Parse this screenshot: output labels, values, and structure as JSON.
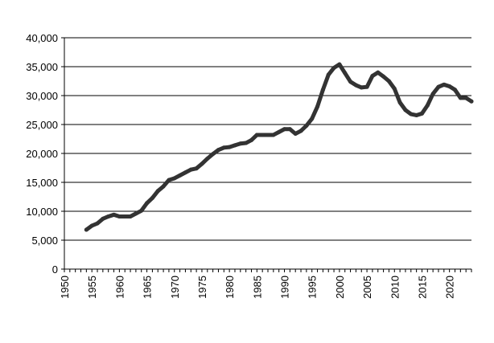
{
  "chart_data": {
    "type": "line",
    "title": "",
    "xlabel": "",
    "ylabel": "",
    "xlim": [
      1950,
      2024
    ],
    "ylim": [
      0,
      40000
    ],
    "grid": true,
    "legend": "none",
    "x_tick_labels": [
      "1950",
      "1955",
      "1960",
      "1965",
      "1970",
      "1975",
      "1980",
      "1985",
      "1990",
      "1995",
      "2000",
      "2005",
      "2010",
      "2015",
      "2020"
    ],
    "y_tick_labels": [
      "0",
      "5,000",
      "10,000",
      "15,000",
      "20,000",
      "25,000",
      "30,000",
      "35,000",
      "40,000"
    ],
    "series": [
      {
        "color": "#333333",
        "points": [
          [
            1954,
            6800
          ],
          [
            1955,
            7500
          ],
          [
            1956,
            7900
          ],
          [
            1957,
            8700
          ],
          [
            1958,
            9100
          ],
          [
            1959,
            9400
          ],
          [
            1960,
            9100
          ],
          [
            1961,
            9100
          ],
          [
            1962,
            9100
          ],
          [
            1963,
            9600
          ],
          [
            1964,
            10100
          ],
          [
            1965,
            11400
          ],
          [
            1966,
            12300
          ],
          [
            1967,
            13500
          ],
          [
            1968,
            14300
          ],
          [
            1969,
            15400
          ],
          [
            1970,
            15700
          ],
          [
            1971,
            16200
          ],
          [
            1972,
            16700
          ],
          [
            1973,
            17200
          ],
          [
            1974,
            17400
          ],
          [
            1975,
            18200
          ],
          [
            1976,
            19100
          ],
          [
            1977,
            19900
          ],
          [
            1978,
            20600
          ],
          [
            1979,
            21000
          ],
          [
            1980,
            21100
          ],
          [
            1981,
            21400
          ],
          [
            1982,
            21700
          ],
          [
            1983,
            21800
          ],
          [
            1984,
            22300
          ],
          [
            1985,
            23200
          ],
          [
            1986,
            23200
          ],
          [
            1987,
            23200
          ],
          [
            1988,
            23200
          ],
          [
            1989,
            23700
          ],
          [
            1990,
            24200
          ],
          [
            1991,
            24200
          ],
          [
            1992,
            23400
          ],
          [
            1993,
            23900
          ],
          [
            1994,
            24800
          ],
          [
            1995,
            26000
          ],
          [
            1996,
            28100
          ],
          [
            1997,
            31000
          ],
          [
            1998,
            33600
          ],
          [
            1999,
            34800
          ],
          [
            2000,
            35400
          ],
          [
            2001,
            33900
          ],
          [
            2002,
            32400
          ],
          [
            2003,
            31800
          ],
          [
            2004,
            31400
          ],
          [
            2005,
            31500
          ],
          [
            2006,
            33400
          ],
          [
            2007,
            34000
          ],
          [
            2008,
            33300
          ],
          [
            2009,
            32500
          ],
          [
            2010,
            31200
          ],
          [
            2011,
            28800
          ],
          [
            2012,
            27500
          ],
          [
            2013,
            26800
          ],
          [
            2014,
            26600
          ],
          [
            2015,
            26900
          ],
          [
            2016,
            28300
          ],
          [
            2017,
            30300
          ],
          [
            2018,
            31500
          ],
          [
            2019,
            31900
          ],
          [
            2020,
            31600
          ],
          [
            2021,
            31000
          ],
          [
            2022,
            29600
          ],
          [
            2023,
            29600
          ],
          [
            2024,
            29000
          ]
        ]
      }
    ]
  }
}
